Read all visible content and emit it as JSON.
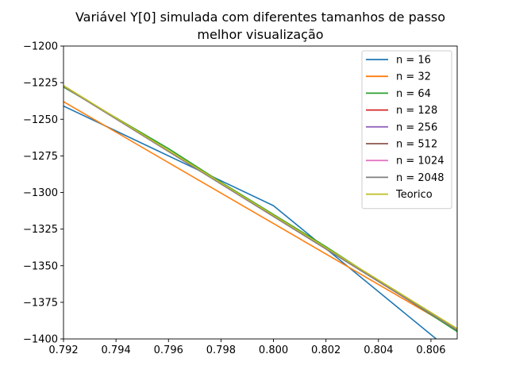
{
  "chart_data": {
    "type": "line",
    "title_lines": [
      "Variável Y[0] simulada com diferentes tamanhos de passo",
      "melhor visualização"
    ],
    "xlabel": "",
    "ylabel": "",
    "xlim": [
      0.792,
      0.807
    ],
    "ylim": [
      -1400,
      -1200
    ],
    "x_ticks": [
      0.792,
      0.794,
      0.796,
      0.798,
      0.8,
      0.802,
      0.804,
      0.806
    ],
    "x_tick_labels": [
      "0.792",
      "0.794",
      "0.796",
      "0.798",
      "0.800",
      "0.802",
      "0.804",
      "0.806"
    ],
    "y_ticks": [
      -1200,
      -1225,
      -1250,
      -1275,
      -1300,
      -1325,
      -1350,
      -1375,
      -1400
    ],
    "y_tick_labels": [
      "−1200",
      "−1225",
      "−1250",
      "−1275",
      "−1300",
      "−1325",
      "−1350",
      "−1375",
      "−1400"
    ],
    "grid": false,
    "legend_position": "top-right",
    "series": [
      {
        "name": "n = 16",
        "color": "#1f77b4",
        "points": [
          [
            0.792,
            -1241
          ],
          [
            0.8,
            -1309
          ],
          [
            0.8062,
            -1400
          ]
        ]
      },
      {
        "name": "n = 32",
        "color": "#ff7f0e",
        "points": [
          [
            0.792,
            -1238
          ],
          [
            0.807,
            -1394
          ]
        ]
      },
      {
        "name": "n = 64",
        "color": "#2ca02c",
        "points": [
          [
            0.792,
            -1228
          ],
          [
            0.796,
            -1270
          ],
          [
            0.798,
            -1293
          ],
          [
            0.802,
            -1337
          ],
          [
            0.807,
            -1395
          ]
        ]
      },
      {
        "name": "n = 128",
        "color": "#d62728",
        "points": [
          [
            0.792,
            -1227.5
          ],
          [
            0.807,
            -1394
          ]
        ]
      },
      {
        "name": "n = 256",
        "color": "#9467bd",
        "points": [
          [
            0.792,
            -1227.5
          ],
          [
            0.807,
            -1394
          ]
        ]
      },
      {
        "name": "n = 512",
        "color": "#8c564b",
        "points": [
          [
            0.792,
            -1227.5
          ],
          [
            0.807,
            -1394
          ]
        ]
      },
      {
        "name": "n = 1024",
        "color": "#e377c2",
        "points": [
          [
            0.792,
            -1227.5
          ],
          [
            0.807,
            -1394
          ]
        ]
      },
      {
        "name": "n = 2048",
        "color": "#7f7f7f",
        "points": [
          [
            0.792,
            -1227.5
          ],
          [
            0.807,
            -1394
          ]
        ]
      },
      {
        "name": "Teorico",
        "color": "#bcbd22",
        "points": [
          [
            0.792,
            -1227
          ],
          [
            0.807,
            -1393
          ]
        ]
      }
    ]
  }
}
